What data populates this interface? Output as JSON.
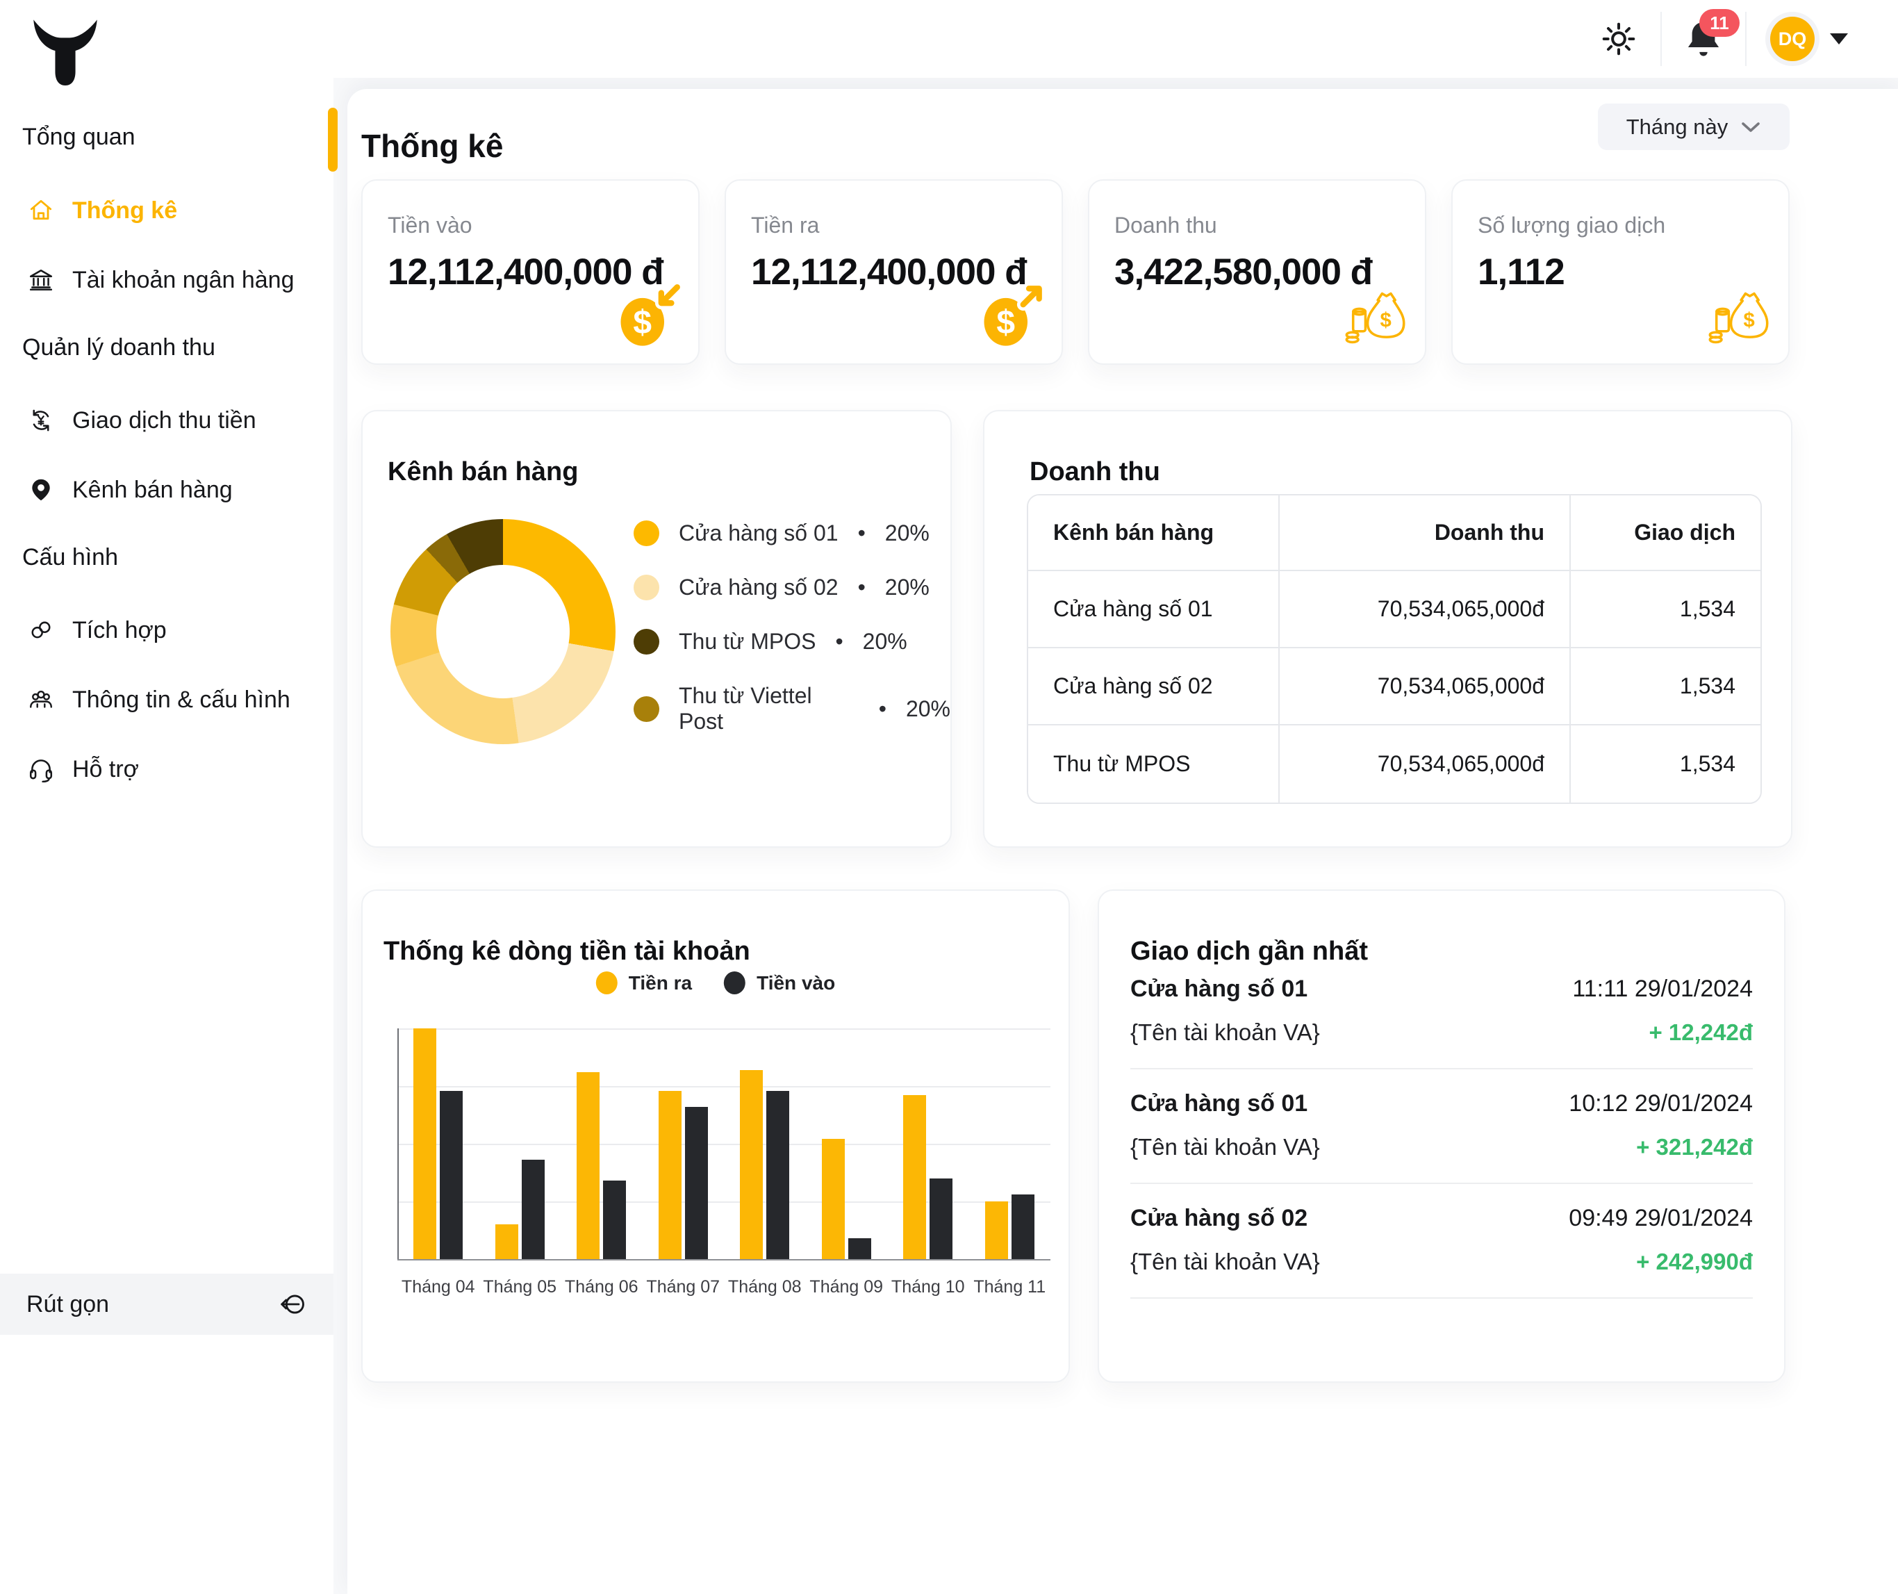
{
  "header": {
    "notification_count": "11",
    "avatar_initials": "DQ"
  },
  "sidebar": {
    "sections": [
      {
        "label": "Tổng quan",
        "items": [
          {
            "icon": "home-icon",
            "label": "Thống kê",
            "active": true
          },
          {
            "icon": "bank-icon",
            "label": "Tài khoản ngân hàng",
            "active": false
          }
        ]
      },
      {
        "label": "Quản lý doanh thu",
        "items": [
          {
            "icon": "currency-cycle-icon",
            "label": "Giao dịch thu tiền",
            "active": false
          },
          {
            "icon": "pin-icon",
            "label": "Kênh bán hàng",
            "active": false
          }
        ]
      },
      {
        "label": "Cấu hình",
        "items": [
          {
            "icon": "link-icon",
            "label": "Tích hợp",
            "active": false
          },
          {
            "icon": "users-icon",
            "label": "Thông tin & cấu hình",
            "active": false
          },
          {
            "icon": "headset-icon",
            "label": "Hỗ trợ",
            "active": false
          }
        ]
      }
    ],
    "collapse_label": "Rút gọn"
  },
  "page": {
    "title": "Thống kê",
    "period_filter": "Tháng này"
  },
  "stat_cards": [
    {
      "label": "Tiền vào",
      "value": "12,112,400,000 đ",
      "icon": "coin-arrow-in-icon"
    },
    {
      "label": "Tiền ra",
      "value": "12,112,400,000 đ",
      "icon": "coin-arrow-out-icon"
    },
    {
      "label": "Doanh thu",
      "value": "3,422,580,000 đ",
      "icon": "money-bag-icon"
    },
    {
      "label": "Số lượng giao dịch",
      "value": "1,112",
      "icon": "money-bag-icon"
    }
  ],
  "sales_channels": {
    "title": "Kênh bán hàng",
    "bullet": "•",
    "legend": [
      {
        "label": "Cửa hàng số 01",
        "percent": "20%",
        "color": "#FDB900"
      },
      {
        "label": "Cửa hàng số 02",
        "percent": "20%",
        "color": "#FCE3AC"
      },
      {
        "label": "Thu từ MPOS",
        "percent": "20%",
        "color": "#4E3D05"
      },
      {
        "label": "Thu từ Viettel Post",
        "percent": "20%",
        "color": "#A8800A"
      }
    ],
    "segments": [
      {
        "color": "#FDB900",
        "from": 0,
        "to": 100
      },
      {
        "color": "#FCE3AC",
        "from": 100,
        "to": 172
      },
      {
        "color": "#FCD577",
        "from": 172,
        "to": 252
      },
      {
        "color": "#FBC94F",
        "from": 252,
        "to": 284
      },
      {
        "color": "#D09C05",
        "from": 284,
        "to": 317
      },
      {
        "color": "#8A6A08",
        "from": 317,
        "to": 330
      },
      {
        "color": "#4E3D05",
        "from": 330,
        "to": 360
      }
    ]
  },
  "revenue_table": {
    "title": "Doanh thu",
    "columns": [
      "Kênh bán hàng",
      "Doanh thu",
      "Giao dịch"
    ],
    "rows": [
      {
        "channel": "Cửa hàng số 01",
        "revenue": "70,534,065,000đ",
        "transactions": "1,534"
      },
      {
        "channel": "Cửa hàng số 02",
        "revenue": "70,534,065,000đ",
        "transactions": "1,534"
      },
      {
        "channel": "Thu từ MPOS",
        "revenue": "70,534,065,000đ",
        "transactions": "1,534"
      }
    ]
  },
  "cashflow": {
    "title": "Thống kê dòng tiền tài khoản",
    "legend": [
      {
        "label": "Tiền ra",
        "color": "#FCB705"
      },
      {
        "label": "Tiền vào",
        "color": "#26282C"
      }
    ]
  },
  "transactions": {
    "title": "Giao dịch gần nhất",
    "items": [
      {
        "store": "Cửa hàng số 01",
        "time": "11:11 29/01/2024",
        "account": "{Tên tài khoản VA}",
        "amount": "+ 12,242đ"
      },
      {
        "store": "Cửa hàng số 01",
        "time": "10:12 29/01/2024",
        "account": "{Tên tài khoản VA}",
        "amount": "+ 321,242đ"
      },
      {
        "store": "Cửa hàng số 02",
        "time": "09:49 29/01/2024",
        "account": "{Tên tài khoản VA}",
        "amount": "+ 242,990đ"
      }
    ]
  },
  "chart_data": [
    {
      "type": "pie",
      "donut": true,
      "title": "Kênh bán hàng",
      "labels": [
        "Cửa hàng số 01",
        "Cửa hàng số 02",
        "Thu từ MPOS",
        "Thu từ Viettel Post"
      ],
      "values": [
        20,
        20,
        20,
        20
      ],
      "colors": [
        "#FDB900",
        "#FCE3AC",
        "#4E3D05",
        "#A8800A"
      ],
      "legend_position": "right"
    },
    {
      "type": "bar",
      "title": "Thống kê dòng tiền tài khoản",
      "categories": [
        "Tháng 04",
        "Tháng 05",
        "Tháng 06",
        "Tháng 07",
        "Tháng 08",
        "Tháng 09",
        "Tháng 10",
        "Tháng 11"
      ],
      "series": [
        {
          "name": "Tiền ra",
          "values": [
            100,
            15,
            81,
            73,
            82,
            52,
            71,
            25
          ]
        },
        {
          "name": "Tiền vào",
          "values": [
            73,
            43,
            34,
            66,
            73,
            9,
            35,
            28
          ]
        }
      ],
      "ylim": [
        0,
        100
      ],
      "grid": true,
      "legend_position": "top"
    }
  ]
}
